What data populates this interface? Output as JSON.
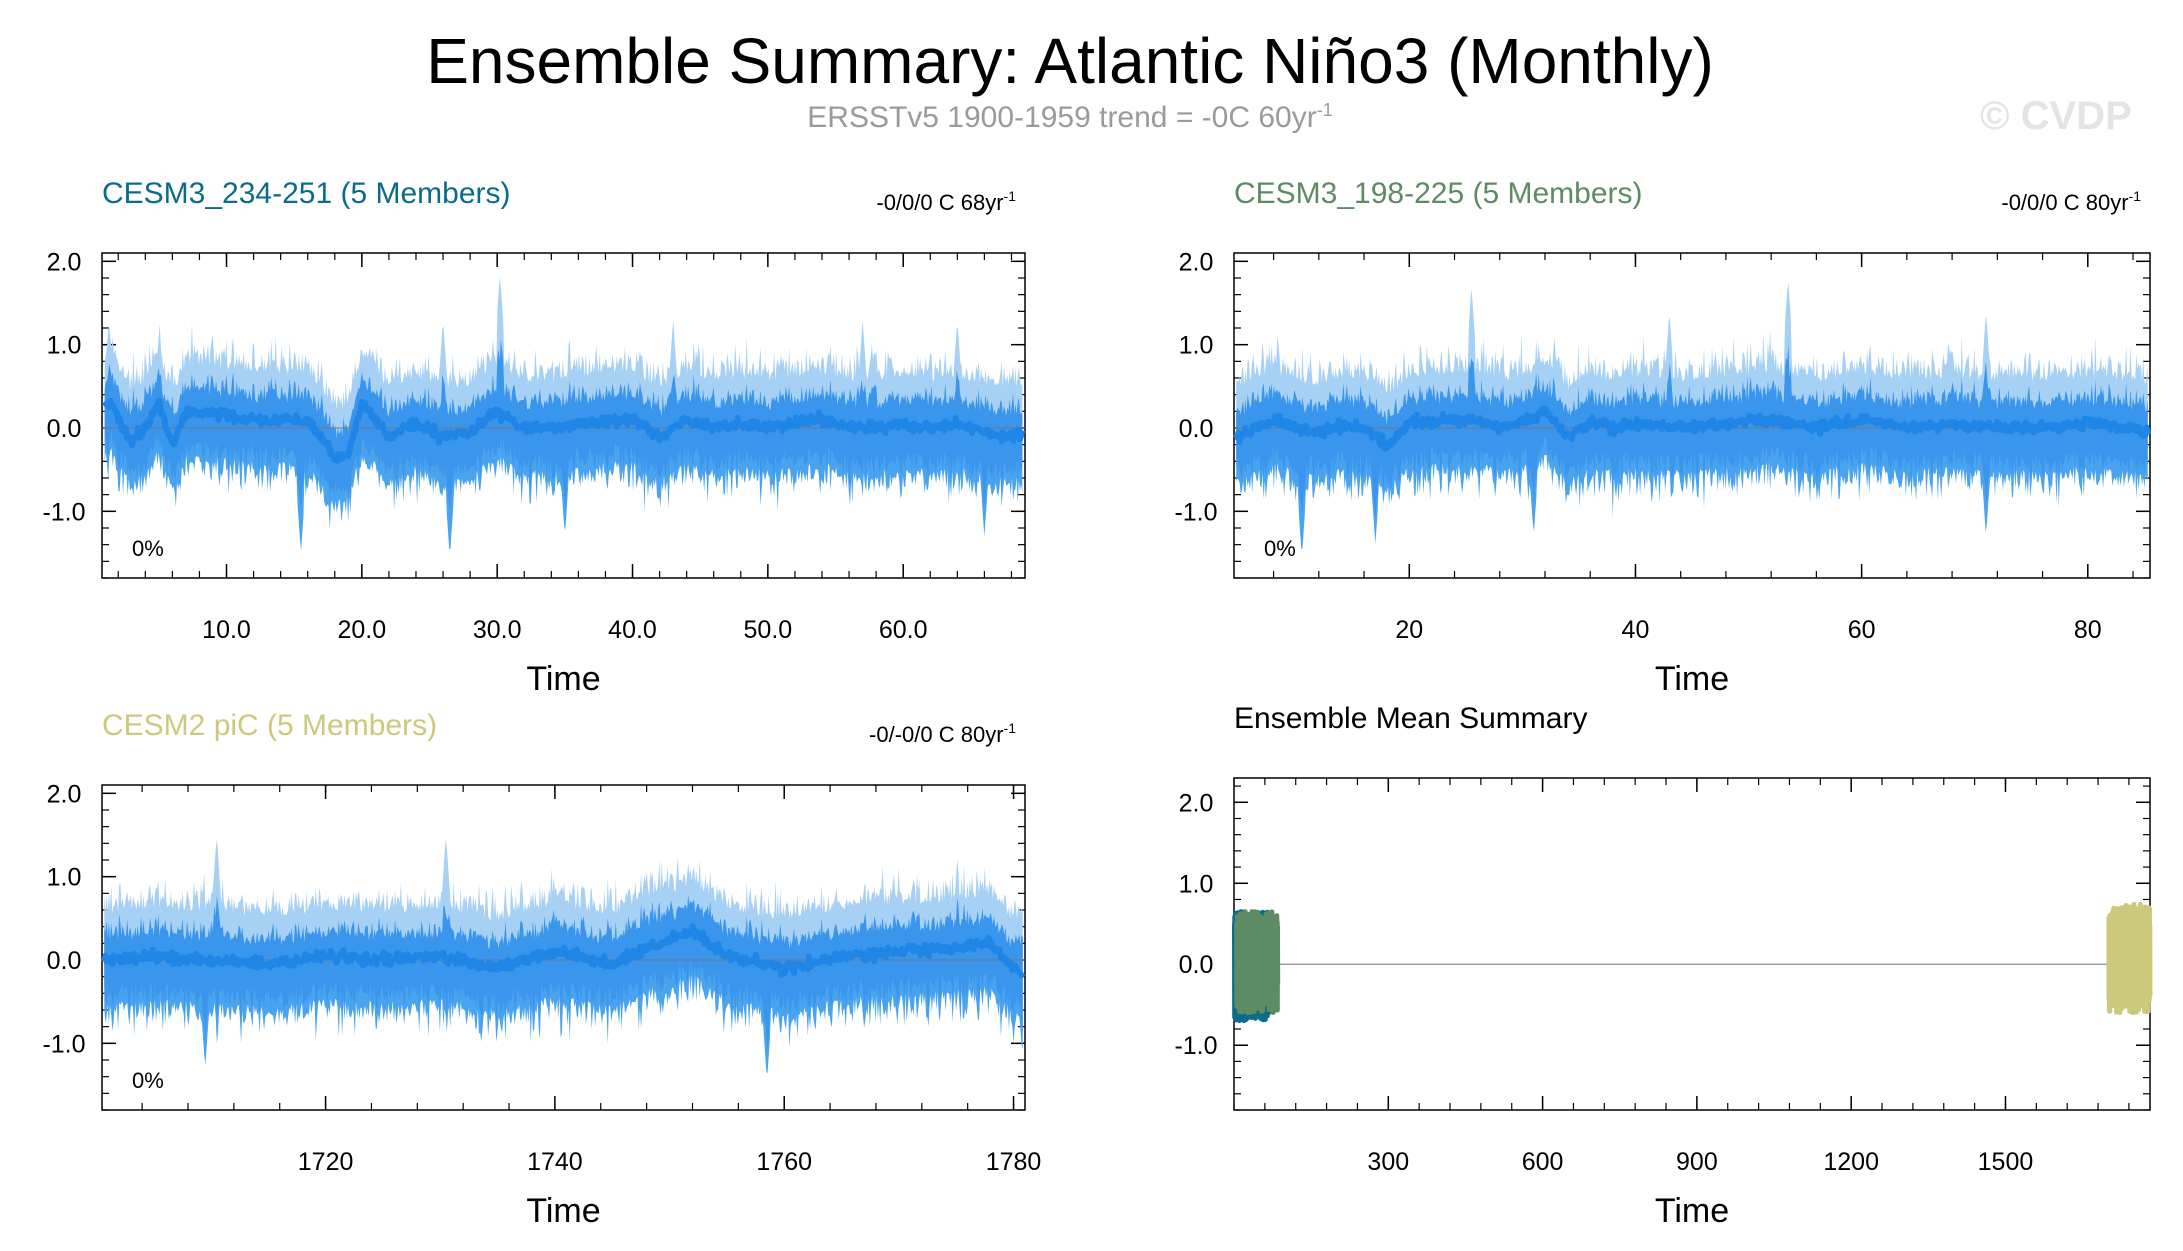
{
  "title": "Ensemble Summary: Atlantic Niño3 (Monthly)",
  "subtitle": {
    "main": "ERSSTv5 1900-1959 trend = -0C 60yr",
    "sup": "-1"
  },
  "watermark": "© CVDP",
  "colors": {
    "spread_light": "#a7d0f5",
    "spread_mid": "#4aa3ef",
    "mean_line": "#1f86e8",
    "zero_line": "#777777",
    "cesm3_234": "#0b6b8a",
    "cesm3_198": "#5d8b63",
    "cesm2_pic": "#cdc97c"
  },
  "chart_data": [
    {
      "id": "cesm3-234",
      "type": "line",
      "title": "CESM3_234-251 (5 Members)",
      "title_color": "#0b6b8a",
      "trend_text": "-0/0/0 C 68yr",
      "trend_sup": "-1",
      "percent_label": "0%",
      "xlabel": "Time",
      "xlim": [
        0.8,
        69.0
      ],
      "xticks": [
        10,
        20,
        30,
        40,
        50,
        60
      ],
      "xtick_labels": [
        "10.0",
        "20.0",
        "30.0",
        "40.0",
        "50.0",
        "60.0"
      ],
      "ylim": [
        -1.8,
        2.1
      ],
      "yticks": [
        -1.0,
        0.0,
        1.0,
        2.0
      ],
      "ytick_labels": [
        "-1.0",
        "0.0",
        "1.0",
        "2.0"
      ],
      "series": [
        {
          "name": "ensemble-mean (smoothed)",
          "x": [
            1,
            1.5,
            2,
            3,
            4,
            5,
            6,
            7,
            8,
            10,
            12,
            14,
            16,
            17,
            18,
            19,
            20,
            22,
            24,
            26,
            28,
            30,
            32,
            34,
            36,
            38,
            40,
            42,
            44,
            46,
            48,
            50,
            52,
            54,
            56,
            58,
            60,
            62,
            64,
            66,
            68,
            69
          ],
          "values": [
            0.25,
            0.3,
            0.1,
            -0.15,
            0.0,
            0.3,
            -0.2,
            0.2,
            0.2,
            0.15,
            0.1,
            0.1,
            0.1,
            -0.1,
            -0.35,
            -0.3,
            0.3,
            -0.1,
            0.05,
            -0.1,
            -0.05,
            0.2,
            0.0,
            0.0,
            0.05,
            0.1,
            0.1,
            -0.1,
            0.1,
            0.0,
            0.05,
            0.0,
            0.05,
            0.1,
            0.0,
            0.0,
            0.05,
            0.0,
            0.05,
            -0.05,
            -0.1,
            -0.05
          ]
        },
        {
          "name": "max-envelope",
          "peaks": [
            [
              1.3,
              1.3
            ],
            [
              30.2,
              1.85
            ],
            [
              26,
              1.3
            ],
            [
              43,
              1.3
            ],
            [
              57,
              1.3
            ],
            [
              64,
              1.3
            ]
          ]
        },
        {
          "name": "min-envelope",
          "troughs": [
            [
              15.5,
              -1.5
            ],
            [
              26.5,
              -1.55
            ],
            [
              35,
              -1.3
            ],
            [
              66,
              -1.3
            ]
          ]
        }
      ]
    },
    {
      "id": "cesm3-198",
      "type": "line",
      "title": "CESM3_198-225 (5 Members)",
      "title_color": "#5d8b63",
      "trend_text": "-0/0/0 C 80yr",
      "trend_sup": "-1",
      "percent_label": "0%",
      "xlabel": "Time",
      "xlim": [
        4.5,
        85.5
      ],
      "xticks": [
        20,
        40,
        60,
        80
      ],
      "xtick_labels": [
        "20",
        "40",
        "60",
        "80"
      ],
      "ylim": [
        -1.8,
        2.1
      ],
      "yticks": [
        -1.0,
        0.0,
        1.0,
        2.0
      ],
      "ytick_labels": [
        "-1.0",
        "0.0",
        "1.0",
        "2.0"
      ],
      "series": [
        {
          "name": "ensemble-mean (smoothed)",
          "x": [
            5,
            8,
            10,
            12,
            14,
            16,
            18,
            20,
            24,
            26,
            28,
            30,
            32,
            34,
            36,
            38,
            40,
            44,
            48,
            52,
            56,
            60,
            64,
            68,
            72,
            76,
            80,
            84,
            85
          ],
          "values": [
            -0.1,
            0.1,
            0.0,
            -0.05,
            0.05,
            0.0,
            -0.2,
            0.05,
            0.1,
            0.1,
            0.0,
            0.05,
            0.2,
            -0.1,
            0.05,
            0.0,
            0.05,
            0.0,
            0.05,
            0.1,
            0.0,
            0.1,
            0.0,
            0.05,
            0.0,
            0.0,
            0.05,
            0.0,
            -0.05
          ]
        },
        {
          "name": "max-envelope",
          "peaks": [
            [
              25.5,
              1.7
            ],
            [
              53.5,
              1.8
            ],
            [
              43,
              1.4
            ],
            [
              71,
              1.4
            ]
          ]
        },
        {
          "name": "min-envelope",
          "troughs": [
            [
              10.5,
              -1.55
            ],
            [
              17,
              -1.4
            ],
            [
              31,
              -1.3
            ],
            [
              71,
              -1.3
            ]
          ]
        }
      ]
    },
    {
      "id": "cesm2-pic",
      "type": "line",
      "title": "CESM2 piC (5 Members)",
      "title_color": "#cdc97c",
      "trend_text": "-0/-0/0 C 80yr",
      "trend_sup": "-1",
      "percent_label": "0%",
      "xlabel": "Time",
      "xlim": [
        1700.5,
        1781.0
      ],
      "xticks": [
        1720,
        1740,
        1760,
        1780
      ],
      "xtick_labels": [
        "1720",
        "1740",
        "1760",
        "1780"
      ],
      "ylim": [
        -1.8,
        2.1
      ],
      "yticks": [
        -1.0,
        0.0,
        1.0,
        2.0
      ],
      "ytick_labels": [
        "-1.0",
        "0.0",
        "1.0",
        "2.0"
      ],
      "series": [
        {
          "name": "ensemble-mean (smoothed)",
          "x": [
            1701,
            1705,
            1710,
            1715,
            1720,
            1725,
            1730,
            1735,
            1740,
            1745,
            1748,
            1752,
            1755,
            1760,
            1765,
            1770,
            1775,
            1778,
            1780,
            1781
          ],
          "values": [
            0.0,
            0.05,
            0.0,
            -0.05,
            0.05,
            0.0,
            0.05,
            -0.1,
            0.1,
            -0.05,
            0.15,
            0.35,
            0.05,
            -0.1,
            0.05,
            0.1,
            0.15,
            0.2,
            -0.1,
            -0.2
          ]
        },
        {
          "name": "max-envelope",
          "peaks": [
            [
              1710.5,
              1.5
            ],
            [
              1730.5,
              1.5
            ],
            [
              1748,
              1.1
            ],
            [
              1775,
              1.0
            ]
          ]
        },
        {
          "name": "min-envelope",
          "troughs": [
            [
              1709.5,
              -1.3
            ],
            [
              1758.5,
              -1.45
            ],
            [
              1780,
              -1.0
            ]
          ]
        }
      ]
    },
    {
      "id": "ensemble-mean-summary",
      "type": "line",
      "title": "Ensemble Mean Summary",
      "title_color": "#000000",
      "xlabel": "Time",
      "xlim": [
        0,
        1781
      ],
      "xticks": [
        300,
        600,
        900,
        1200,
        1500
      ],
      "xtick_labels": [
        "300",
        "600",
        "900",
        "1200",
        "1500"
      ],
      "ylim": [
        -1.8,
        2.3
      ],
      "yticks": [
        -1.0,
        0.0,
        1.0,
        2.0
      ],
      "ytick_labels": [
        "-1.0",
        "0.0",
        "1.0",
        "2.0"
      ],
      "series": [
        {
          "name": "CESM3_234-251",
          "color": "#0b6b8a",
          "x_range": [
            1,
            69
          ],
          "amplitude": [
            -0.7,
            0.65
          ]
        },
        {
          "name": "CESM3_198-225",
          "color": "#5d8b63",
          "x_range": [
            5,
            85
          ],
          "amplitude": [
            -0.6,
            0.65
          ]
        },
        {
          "name": "CESM2 piC",
          "color": "#cdc97c",
          "x_range": [
            1701,
            1781
          ],
          "amplitude": [
            -0.6,
            0.75
          ]
        }
      ]
    }
  ]
}
